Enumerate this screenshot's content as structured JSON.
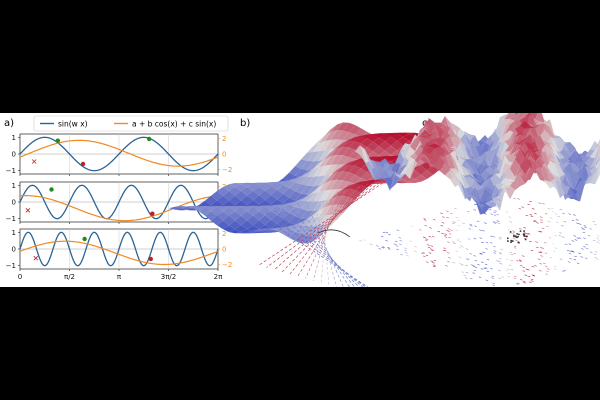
{
  "panel_labels": {
    "a": "a)",
    "b": "b)",
    "c": "c)"
  },
  "legend": {
    "entry_1": "sin(w x)",
    "entry_2": "a + b cos(x) + c sin(x)"
  },
  "colors": {
    "sine": "#2a6496",
    "fit": "#f08a24",
    "point_green": "#1e8a1e",
    "point_red": "#c21f1f",
    "grid": "#cccccc",
    "surface_warm": "#d6604d",
    "surface_cool": "#4393c3"
  },
  "chart_data": [
    {
      "type": "line",
      "panel": "a-top",
      "x_ticks": [
        "0",
        "π/2",
        "π",
        "3π/2",
        "2π"
      ],
      "x_range": [
        0,
        6.2832
      ],
      "y_left_ticks": [
        "−1",
        "0",
        "1"
      ],
      "y_left_range": [
        -1.2,
        1.2
      ],
      "y_right_ticks": [
        "−2",
        "0",
        "2"
      ],
      "y_right_range": [
        -2.6,
        2.6
      ],
      "series": [
        {
          "name": "sin(w x)",
          "omega": 2,
          "axis": "left"
        },
        {
          "name": "a + b cos(x) + c sin(x)",
          "a": 0.1,
          "b": -0.5,
          "c": 1.6,
          "axis": "right"
        }
      ],
      "points": {
        "green": [
          [
            1.2,
            0.8
          ],
          [
            4.1,
            0.9
          ]
        ],
        "red": [
          [
            2.0,
            -0.6
          ]
        ],
        "cross": [
          [
            0.45,
            -0.45
          ]
        ]
      }
    },
    {
      "type": "line",
      "panel": "a-middle",
      "x_ticks": [
        "0",
        "π/2",
        "π",
        "3π/2",
        "2π"
      ],
      "x_range": [
        0,
        6.2832
      ],
      "y_left_ticks": [
        "−1",
        "0",
        "1"
      ],
      "y_left_range": [
        -1.2,
        1.2
      ],
      "y_right_ticks": [
        "−2",
        "0",
        "2"
      ],
      "y_right_range": [
        -2.6,
        2.6
      ],
      "series": [
        {
          "name": "sin(w x)",
          "omega": 4,
          "axis": "left"
        },
        {
          "name": "a + b cos(x) + c sin(x)",
          "a": -0.8,
          "b": 1.6,
          "c": 0.3,
          "axis": "right"
        }
      ],
      "points": {
        "green": [
          [
            1.0,
            0.75
          ]
        ],
        "red": [
          [
            4.2,
            -0.7
          ]
        ],
        "cross": [
          [
            0.25,
            -0.5
          ]
        ]
      }
    },
    {
      "type": "line",
      "panel": "a-bottom",
      "x_ticks": [
        "0",
        "π/2",
        "π",
        "3π/2",
        "2π"
      ],
      "x_range": [
        0,
        6.2832
      ],
      "y_left_ticks": [
        "−1",
        "0",
        "1"
      ],
      "y_left_range": [
        -1.2,
        1.2
      ],
      "y_right_ticks": [
        "−2",
        "0",
        "2"
      ],
      "y_right_range": [
        -2.6,
        2.6
      ],
      "series": [
        {
          "name": "sin(w x)",
          "omega": 6,
          "axis": "left"
        },
        {
          "name": "a + b cos(x) + c sin(x)",
          "a": -0.5,
          "b": 0.2,
          "c": 1.5,
          "axis": "right"
        }
      ],
      "points": {
        "green": [
          [
            2.05,
            0.6
          ]
        ],
        "red": [
          [
            4.15,
            -0.6
          ]
        ],
        "cross": [
          [
            0.5,
            -0.55
          ]
        ]
      }
    }
  ]
}
